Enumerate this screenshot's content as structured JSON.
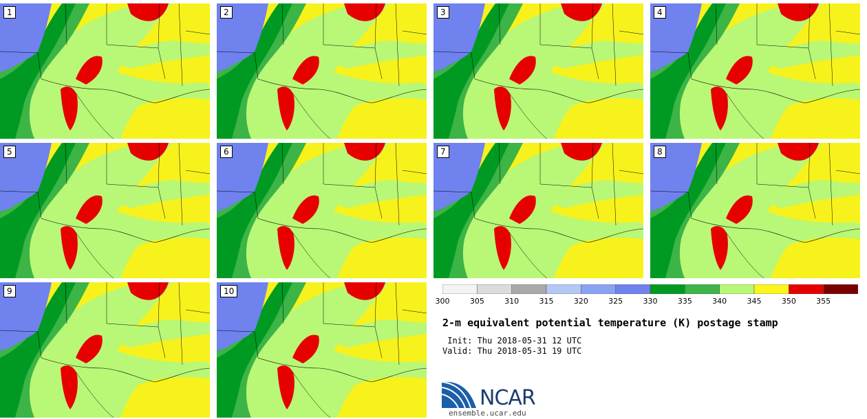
{
  "panels": [
    {
      "label": "1"
    },
    {
      "label": "2"
    },
    {
      "label": "3"
    },
    {
      "label": "4"
    },
    {
      "label": "5"
    },
    {
      "label": "6"
    },
    {
      "label": "7"
    },
    {
      "label": "8"
    },
    {
      "label": "9"
    },
    {
      "label": "10"
    }
  ],
  "colorbar": {
    "ticks": [
      "300",
      "305",
      "310",
      "315",
      "320",
      "325",
      "330",
      "335",
      "340",
      "345",
      "350",
      "355"
    ],
    "colors": [
      "#f4f4f4",
      "#dcdcdc",
      "#a9a9a9",
      "#b4c8f5",
      "#8aa2f2",
      "#6f82ee",
      "#009a22",
      "#3cb446",
      "#b9f777",
      "#fbf51d",
      "#e60000",
      "#7a0000"
    ]
  },
  "title": "2-m equivalent potential temperature (K) postage stamp",
  "init": " Init: Thu 2018-05-31 12 UTC",
  "valid": "Valid: Thu 2018-05-31 19 UTC",
  "logo": {
    "text": "NCAR",
    "site": "ensemble.ucar.edu"
  }
}
